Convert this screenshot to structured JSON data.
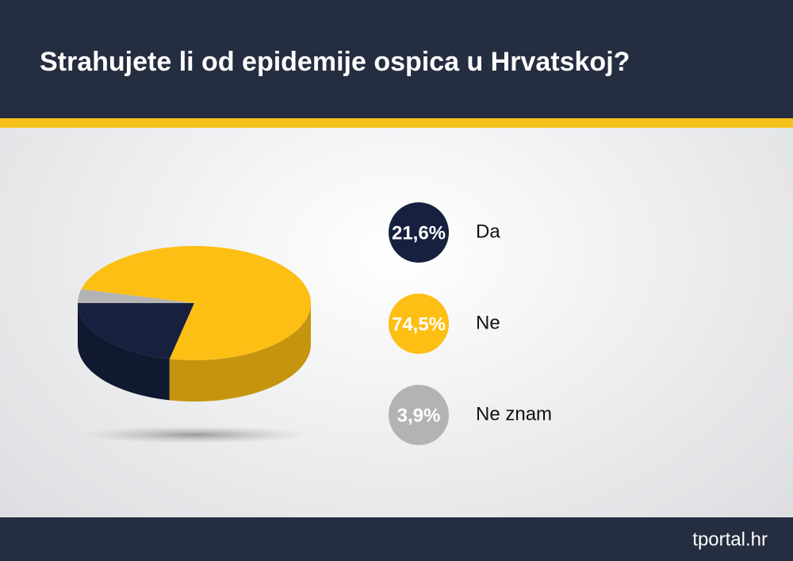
{
  "chart_data": {
    "type": "pie3d",
    "title": "Strahujete li od epidemije ospica u Hrvatskoj?",
    "categories": [
      "Da",
      "Ne",
      "Ne znam"
    ],
    "values": [
      21.6,
      74.5,
      3.9
    ],
    "value_labels": [
      "21,6%",
      "74,5%",
      "3,9%"
    ],
    "colors": [
      "#17213f",
      "#fdbf14",
      "#b3b3b3"
    ],
    "brand": "tportal.hr"
  }
}
